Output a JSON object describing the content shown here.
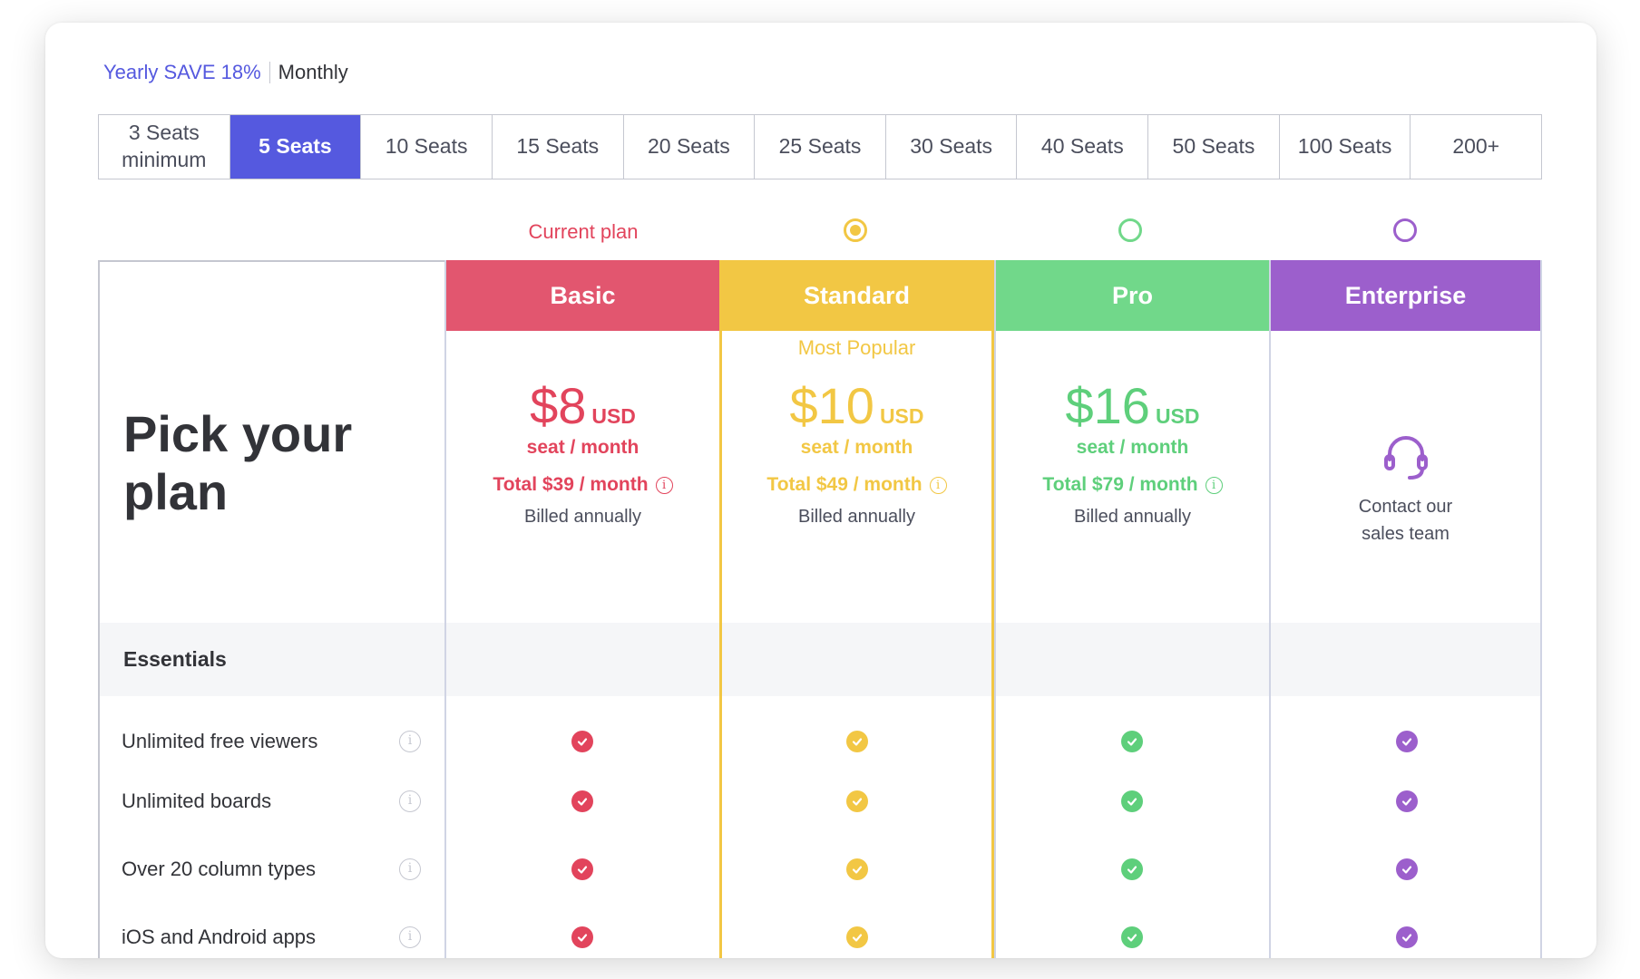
{
  "billing": {
    "yearly_label": "Yearly SAVE 18%",
    "monthly_label": "Monthly"
  },
  "seats": [
    "3 Seats\nminimum",
    "5 Seats",
    "10 Seats",
    "15 Seats",
    "20 Seats",
    "25 Seats",
    "30 Seats",
    "40 Seats",
    "50 Seats",
    "100 Seats",
    "200+"
  ],
  "selected_seat": "5 Seats",
  "current_plan_label": "Current plan",
  "pick_title": "Pick your plan",
  "section_label": "Essentials",
  "plans": [
    {
      "name": "Basic",
      "color": "#e2566f",
      "amount": "$8",
      "currency": "USD",
      "per": "seat / month",
      "total": "Total $39 / month",
      "billed": "Billed annually"
    },
    {
      "name": "Standard",
      "color": "#f2c744",
      "popular": "Most Popular",
      "amount": "$10",
      "currency": "USD",
      "per": "seat / month",
      "total": "Total $49 / month",
      "billed": "Billed annually"
    },
    {
      "name": "Pro",
      "color": "#71d88a",
      "amount": "$16",
      "currency": "USD",
      "per": "seat / month",
      "total": "Total $79 / month",
      "billed": "Billed annually"
    },
    {
      "name": "Enterprise",
      "color": "#9c5fcc",
      "contact": "Contact our\nsales team",
      "icon": "headset-icon"
    }
  ],
  "features": [
    "Unlimited free viewers",
    "Unlimited boards",
    "Over 20 column types",
    "iOS and Android apps"
  ],
  "colors": {
    "accent": "#5559df",
    "basic": "#e2445c",
    "standard": "#f2c744",
    "pro": "#5ecf7b",
    "enterprise": "#9c5fcc"
  }
}
